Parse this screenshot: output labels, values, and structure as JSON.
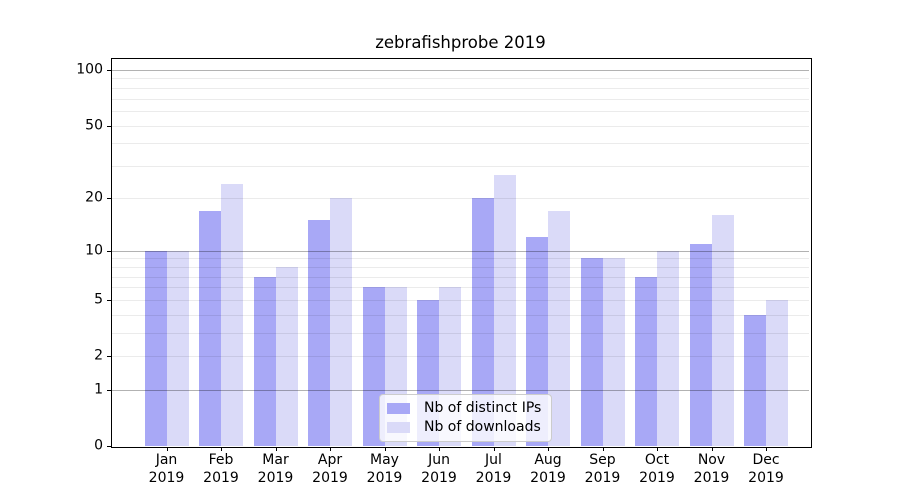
{
  "title": "zebrafishprobe 2019",
  "chart_data": {
    "type": "bar",
    "title": "zebrafishprobe 2019",
    "categories": [
      "Jan 2019",
      "Feb 2019",
      "Mar 2019",
      "Apr 2019",
      "May 2019",
      "Jun 2019",
      "Jul 2019",
      "Aug 2019",
      "Sep 2019",
      "Oct 2019",
      "Nov 2019",
      "Dec 2019"
    ],
    "series": [
      {
        "name": "Nb of distinct IPs",
        "color": "#a8a8f6",
        "values": [
          10,
          17,
          7,
          15,
          6,
          5,
          20,
          12,
          9,
          7,
          11,
          4
        ]
      },
      {
        "name": "Nb of downloads",
        "color": "#dadaf8",
        "values": [
          10,
          24,
          8,
          20,
          6,
          6,
          27,
          17,
          9,
          10,
          16,
          5
        ]
      }
    ],
    "xlabel": "",
    "ylabel": "",
    "yscale": "log1p",
    "ylim": [
      0,
      116
    ],
    "yticks": [
      0,
      1,
      2,
      5,
      10,
      20,
      50,
      100
    ],
    "minor_gridlines": [
      2,
      3,
      4,
      5,
      6,
      7,
      8,
      9,
      20,
      30,
      40,
      50,
      60,
      70,
      80,
      90
    ],
    "major_gridlines": [
      1,
      10,
      100
    ],
    "grid": true,
    "legend_position": "lower center"
  },
  "legend": {
    "items": [
      {
        "label": "Nb of distinct IPs",
        "color": "#a8a8f6"
      },
      {
        "label": "Nb of downloads",
        "color": "#dadaf8"
      }
    ]
  }
}
